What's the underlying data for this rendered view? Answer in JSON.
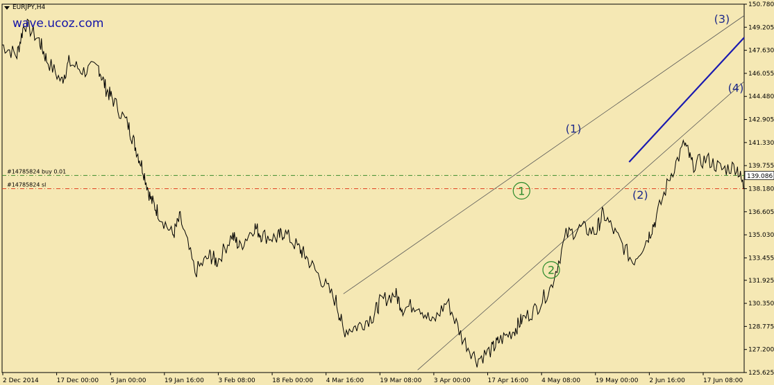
{
  "window": {
    "symbol_timeframe": "EURJPY,H4",
    "watermark": "wave.ucoz.com"
  },
  "colors": {
    "background": "#f5e8b4",
    "price_line": "#000000",
    "buy_line": "#3a8a2a",
    "sl_line": "#e04020",
    "current_price_box": "#ffffff",
    "wave_label": "#1e2a8a",
    "minor_wave_label": "#2a8a2a",
    "projection_line": "#1a1ab0"
  },
  "chart_data": {
    "type": "line",
    "symbol": "EURJPY",
    "timeframe": "H4",
    "ylim": [
      125.625,
      150.78
    ],
    "y_ticks": [
      "150.780",
      "149.205",
      "147.630",
      "146.055",
      "144.480",
      "142.905",
      "141.330",
      "139.755",
      "138.180",
      "136.605",
      "135.030",
      "133.455",
      "131.925",
      "130.350",
      "128.775",
      "127.200",
      "125.625"
    ],
    "x_ticks": [
      "2 Dec 2014",
      "17 Dec 00:00",
      "5 Jan 00:00",
      "19 Jan 16:00",
      "3 Feb 08:00",
      "18 Feb 00:00",
      "4 Mar 16:00",
      "19 Mar 08:00",
      "3 Apr 00:00",
      "17 Apr 16:00",
      "4 May 08:00",
      "19 May 00:00",
      "2 Jun 16:00",
      "17 Jun 08:00"
    ],
    "current_price": "139.086",
    "orders": [
      {
        "label": "#14785824 buy 0.01",
        "price": 139.086
      },
      {
        "label": "#14785824 sl",
        "price": 138.18
      }
    ],
    "price_path": {
      "x": [
        0,
        0.02,
        0.03,
        0.05,
        0.06,
        0.08,
        0.09,
        0.11,
        0.13,
        0.14,
        0.15,
        0.17,
        0.18,
        0.19,
        0.2,
        0.21,
        0.23,
        0.24,
        0.26,
        0.28,
        0.29,
        0.31,
        0.32,
        0.34,
        0.35,
        0.37,
        0.38,
        0.4,
        0.41,
        0.43,
        0.45,
        0.46,
        0.48,
        0.5,
        0.51,
        0.53,
        0.54,
        0.56,
        0.58,
        0.6,
        0.62,
        0.64,
        0.66,
        0.67,
        0.69,
        0.7,
        0.72,
        0.74,
        0.76,
        0.78,
        0.8,
        0.81,
        0.83,
        0.85,
        0.87,
        0.88,
        0.9,
        0.92,
        0.93,
        0.95,
        0.97,
        0.99,
        1.0
      ],
      "y": [
        148.0,
        147.3,
        149.5,
        148.3,
        147.0,
        145.5,
        146.8,
        146.2,
        146.5,
        145.0,
        144.2,
        142.5,
        141.0,
        139.5,
        137.5,
        136.6,
        135.0,
        136.2,
        132.5,
        133.6,
        133.2,
        135.0,
        134.2,
        135.6,
        135.0,
        134.8,
        135.2,
        134.1,
        133.5,
        132.0,
        130.5,
        128.5,
        128.8,
        129.5,
        130.5,
        131.0,
        130.0,
        130.3,
        129.0,
        130.5,
        128.0,
        126.5,
        127.2,
        127.8,
        128.5,
        129.2,
        130.0,
        131.5,
        135.0,
        135.5,
        135.2,
        136.5,
        134.8,
        133.2,
        134.8,
        136.0,
        139.0,
        141.3,
        139.8,
        140.2,
        139.5,
        139.7,
        138.2
      ]
    },
    "channel_upper": {
      "x": [
        0.46,
        1.0
      ],
      "y": [
        131.0,
        150.0
      ]
    },
    "channel_lower": {
      "x": [
        0.56,
        1.0
      ],
      "y": [
        125.8,
        145.5
      ]
    },
    "projection": {
      "x": [
        0.845,
        1.0
      ],
      "y": [
        140.0,
        148.5
      ]
    },
    "wave_labels": [
      {
        "text": "(1)",
        "x": 0.77,
        "y": 142.0,
        "circled": false
      },
      {
        "text": "(2)",
        "x": 0.86,
        "y": 137.5,
        "circled": false
      },
      {
        "text": "(3)",
        "x": 0.97,
        "y": 149.5,
        "circled": false
      },
      {
        "text": "(4)",
        "x": 1.04,
        "y": 144.8,
        "circled": false
      },
      {
        "text": "1",
        "x": 0.7,
        "y": 137.8,
        "circled": true
      },
      {
        "text": "2",
        "x": 0.74,
        "y": 132.4,
        "circled": true
      }
    ]
  }
}
